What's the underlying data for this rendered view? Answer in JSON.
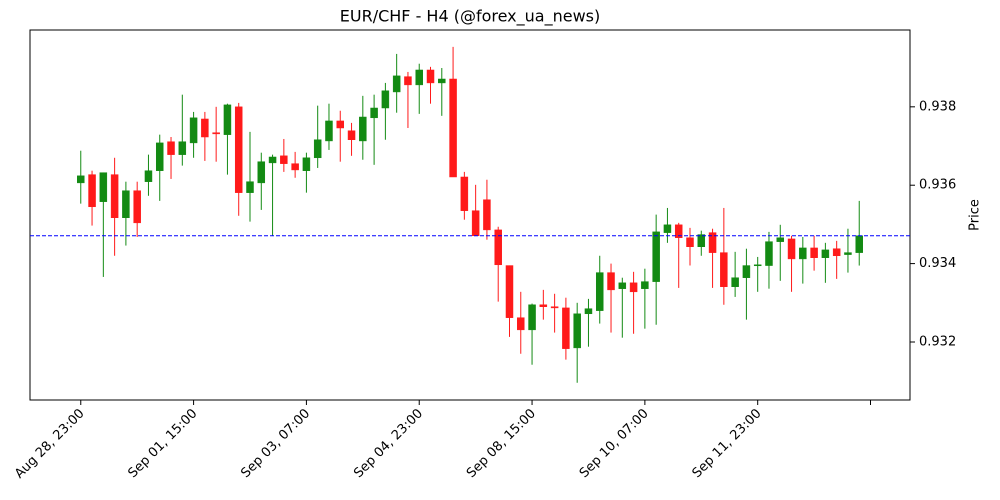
{
  "chart_data": {
    "type": "candlestick",
    "title": "EUR/CHF - H4 (@forex_ua_news)",
    "y_label": "Price",
    "up_color": "#138a13",
    "down_color": "#ff1a1a",
    "hline": {
      "value": 0.93471,
      "color": "#0000ff",
      "style": "dashed"
    },
    "xlim": [
      -4.5,
      73.5
    ],
    "ylim": [
      0.93052,
      0.93996
    ],
    "yticks": [
      0.932,
      0.934,
      0.936,
      0.938
    ],
    "xticks": [
      {
        "value": 0,
        "label": "Aug 28, 23:00"
      },
      {
        "value": 10,
        "label": "Sep 01, 15:00"
      },
      {
        "value": 20,
        "label": "Sep 03, 07:00"
      },
      {
        "value": 30,
        "label": "Sep 04, 23:00"
      },
      {
        "value": 40,
        "label": "Sep 08, 15:00"
      },
      {
        "value": 50,
        "label": "Sep 10, 07:00"
      },
      {
        "value": 60,
        "label": "Sep 11, 23:00"
      },
      {
        "value": 70
      }
    ],
    "open": [
      0.93606,
      0.93627,
      0.93558,
      0.93627,
      0.93517,
      0.93586,
      0.93609,
      0.93637,
      0.93711,
      0.93678,
      0.93708,
      0.93769,
      0.93734,
      0.93729,
      0.938,
      0.93581,
      0.93606,
      0.93657,
      0.93675,
      0.93655,
      0.93637,
      0.9367,
      0.93713,
      0.93764,
      0.93739,
      0.93713,
      0.93772,
      0.93797,
      0.93838,
      0.93877,
      0.93856,
      0.93894,
      0.93861,
      0.93871,
      0.93621,
      0.93535,
      0.93563,
      0.93486,
      0.93395,
      0.93262,
      0.93231,
      0.93295,
      0.9329,
      0.93287,
      0.93185,
      0.93272,
      0.9328,
      0.93377,
      0.93336,
      0.93351,
      0.93336,
      0.93354,
      0.93479,
      0.93499,
      0.93466,
      0.93443,
      0.93479,
      0.93428,
      0.93341,
      0.93364,
      0.93395,
      0.93395,
      0.93456,
      0.93463,
      0.93412,
      0.9344,
      0.93415,
      0.93438,
      0.93423,
      0.93428
    ],
    "high": [
      0.93688,
      0.93637,
      0.93632,
      0.9367,
      0.93609,
      0.93609,
      0.93678,
      0.93729,
      0.93723,
      0.93831,
      0.93787,
      0.93787,
      0.938,
      0.93808,
      0.9381,
      0.93736,
      0.93683,
      0.93678,
      0.93718,
      0.93685,
      0.93683,
      0.93803,
      0.93808,
      0.9379,
      0.93759,
      0.93828,
      0.93831,
      0.93861,
      0.93935,
      0.93889,
      0.9391,
      0.93902,
      0.93899,
      0.93953,
      0.93634,
      0.93601,
      0.93614,
      0.93494,
      0.93395,
      0.93328,
      0.93298,
      0.93333,
      0.93323,
      0.93313,
      0.933,
      0.9331,
      0.9342,
      0.934,
      0.93364,
      0.93379,
      0.93387,
      0.93525,
      0.93542,
      0.93504,
      0.93491,
      0.93484,
      0.93489,
      0.93542,
      0.9343,
      0.93438,
      0.93417,
      0.93481,
      0.93499,
      0.93471,
      0.93468,
      0.93471,
      0.93453,
      0.93458,
      0.93489,
      0.9356
    ],
    "low": [
      0.93553,
      0.93497,
      0.93366,
      0.9342,
      0.93446,
      0.93468,
      0.93573,
      0.9356,
      0.93616,
      0.9365,
      0.9367,
      0.93662,
      0.9366,
      0.93627,
      0.93522,
      0.93507,
      0.93537,
      0.93471,
      0.93634,
      0.93619,
      0.93581,
      0.93644,
      0.9369,
      0.9366,
      0.93675,
      0.93665,
      0.93652,
      0.93716,
      0.93785,
      0.93746,
      0.93782,
      0.93808,
      0.93777,
      0.93621,
      0.93512,
      0.93471,
      0.93461,
      0.93303,
      0.93213,
      0.9317,
      0.93142,
      0.93257,
      0.93224,
      0.93155,
      0.93096,
      0.93188,
      0.93247,
      0.93224,
      0.93211,
      0.93221,
      0.93234,
      0.93244,
      0.93453,
      0.93338,
      0.93395,
      0.9342,
      0.93338,
      0.93295,
      0.93315,
      0.93257,
      0.93328,
      0.93336,
      0.93356,
      0.93328,
      0.93349,
      0.93382,
      0.93351,
      0.93361,
      0.93377,
      0.93395
    ],
    "close": [
      0.93624,
      0.93545,
      0.93632,
      0.93517,
      0.93586,
      0.93504,
      0.93637,
      0.93708,
      0.93678,
      0.93711,
      0.93772,
      0.93723,
      0.93731,
      0.93805,
      0.93581,
      0.93609,
      0.9366,
      0.93672,
      0.93655,
      0.93639,
      0.9367,
      0.93716,
      0.93764,
      0.93746,
      0.93716,
      0.93774,
      0.93797,
      0.93841,
      0.93879,
      0.93856,
      0.93894,
      0.93861,
      0.93871,
      0.93621,
      0.93535,
      0.93471,
      0.93486,
      0.93397,
      0.93262,
      0.93231,
      0.93295,
      0.9329,
      0.93287,
      0.93183,
      0.93272,
      0.93285,
      0.93377,
      0.93333,
      0.93351,
      0.93328,
      0.93354,
      0.93481,
      0.93499,
      0.93466,
      0.93443,
      0.93474,
      0.93428,
      0.93341,
      0.93364,
      0.93395,
      0.93397,
      0.93456,
      0.93466,
      0.93412,
      0.9344,
      0.93415,
      0.93435,
      0.9342,
      0.93428,
      0.93471
    ]
  }
}
